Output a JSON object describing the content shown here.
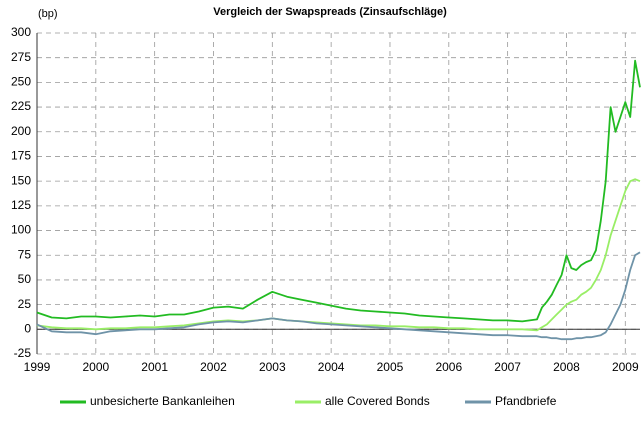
{
  "chart_data": {
    "type": "line",
    "title": "Vergleich der Swapspreads (Zinsaufschläge)",
    "y_unit": "(bp)",
    "x": [
      1999,
      1999.25,
      1999.5,
      1999.75,
      2000,
      2000.25,
      2000.5,
      2000.75,
      2001,
      2001.25,
      2001.5,
      2001.75,
      2002,
      2002.25,
      2002.5,
      2002.75,
      2003,
      2003.25,
      2003.5,
      2003.75,
      2004,
      2004.25,
      2004.5,
      2004.75,
      2005,
      2005.25,
      2005.5,
      2005.75,
      2006,
      2006.25,
      2006.5,
      2006.75,
      2007,
      2007.25,
      2007.5,
      2007.583,
      2007.667,
      2007.75,
      2007.833,
      2007.917,
      2008,
      2008.083,
      2008.167,
      2008.25,
      2008.333,
      2008.417,
      2008.5,
      2008.583,
      2008.667,
      2008.75,
      2008.833,
      2008.917,
      2009,
      2009.083,
      2009.167,
      2009.25
    ],
    "series": [
      {
        "name": "unbesicherte Bankanleihen",
        "color": "#22bb22",
        "values": [
          17,
          12,
          11,
          13,
          13,
          12,
          13,
          14,
          13,
          15,
          15,
          18,
          22,
          23,
          21,
          30,
          38,
          33,
          30,
          27,
          24,
          21,
          19,
          18,
          17,
          16,
          14,
          13,
          12,
          11,
          10,
          9,
          9,
          8,
          10,
          22,
          28,
          35,
          45,
          55,
          75,
          62,
          60,
          65,
          68,
          70,
          80,
          110,
          150,
          225,
          200,
          215,
          230,
          215,
          272,
          245
        ]
      },
      {
        "name": "alle Covered Bonds",
        "color": "#99ee66",
        "values": [
          4,
          2,
          1,
          1,
          0,
          1,
          1,
          2,
          2,
          3,
          4,
          6,
          8,
          9,
          8,
          9,
          11,
          9,
          8,
          7,
          6,
          5,
          4,
          4,
          3,
          3,
          2,
          2,
          1,
          1,
          0,
          0,
          0,
          0,
          -1,
          2,
          5,
          10,
          15,
          20,
          25,
          28,
          30,
          35,
          38,
          42,
          50,
          60,
          75,
          95,
          110,
          125,
          140,
          150,
          152,
          150
        ]
      },
      {
        "name": "Pfandbriefe",
        "color": "#6f93a8",
        "values": [
          5,
          -2,
          -3,
          -3,
          -5,
          -2,
          -1,
          0,
          0,
          1,
          2,
          5,
          7,
          8,
          7,
          9,
          11,
          9,
          8,
          6,
          5,
          4,
          3,
          2,
          1,
          0,
          -1,
          -2,
          -3,
          -4,
          -5,
          -6,
          -6,
          -7,
          -7,
          -8,
          -8,
          -9,
          -9,
          -10,
          -10,
          -10,
          -9,
          -9,
          -8,
          -8,
          -7,
          -6,
          -3,
          5,
          15,
          25,
          40,
          60,
          75,
          78
        ]
      }
    ],
    "xlim": [
      1999,
      2009.25
    ],
    "xticks": [
      1999,
      2000,
      2001,
      2002,
      2003,
      2004,
      2005,
      2006,
      2007,
      2008,
      2009
    ],
    "ylim": [
      -25,
      300
    ],
    "yticks": [
      -25,
      0,
      25,
      50,
      75,
      100,
      125,
      150,
      175,
      200,
      225,
      250,
      275,
      300
    ],
    "grid": true,
    "legend": "bottom"
  }
}
